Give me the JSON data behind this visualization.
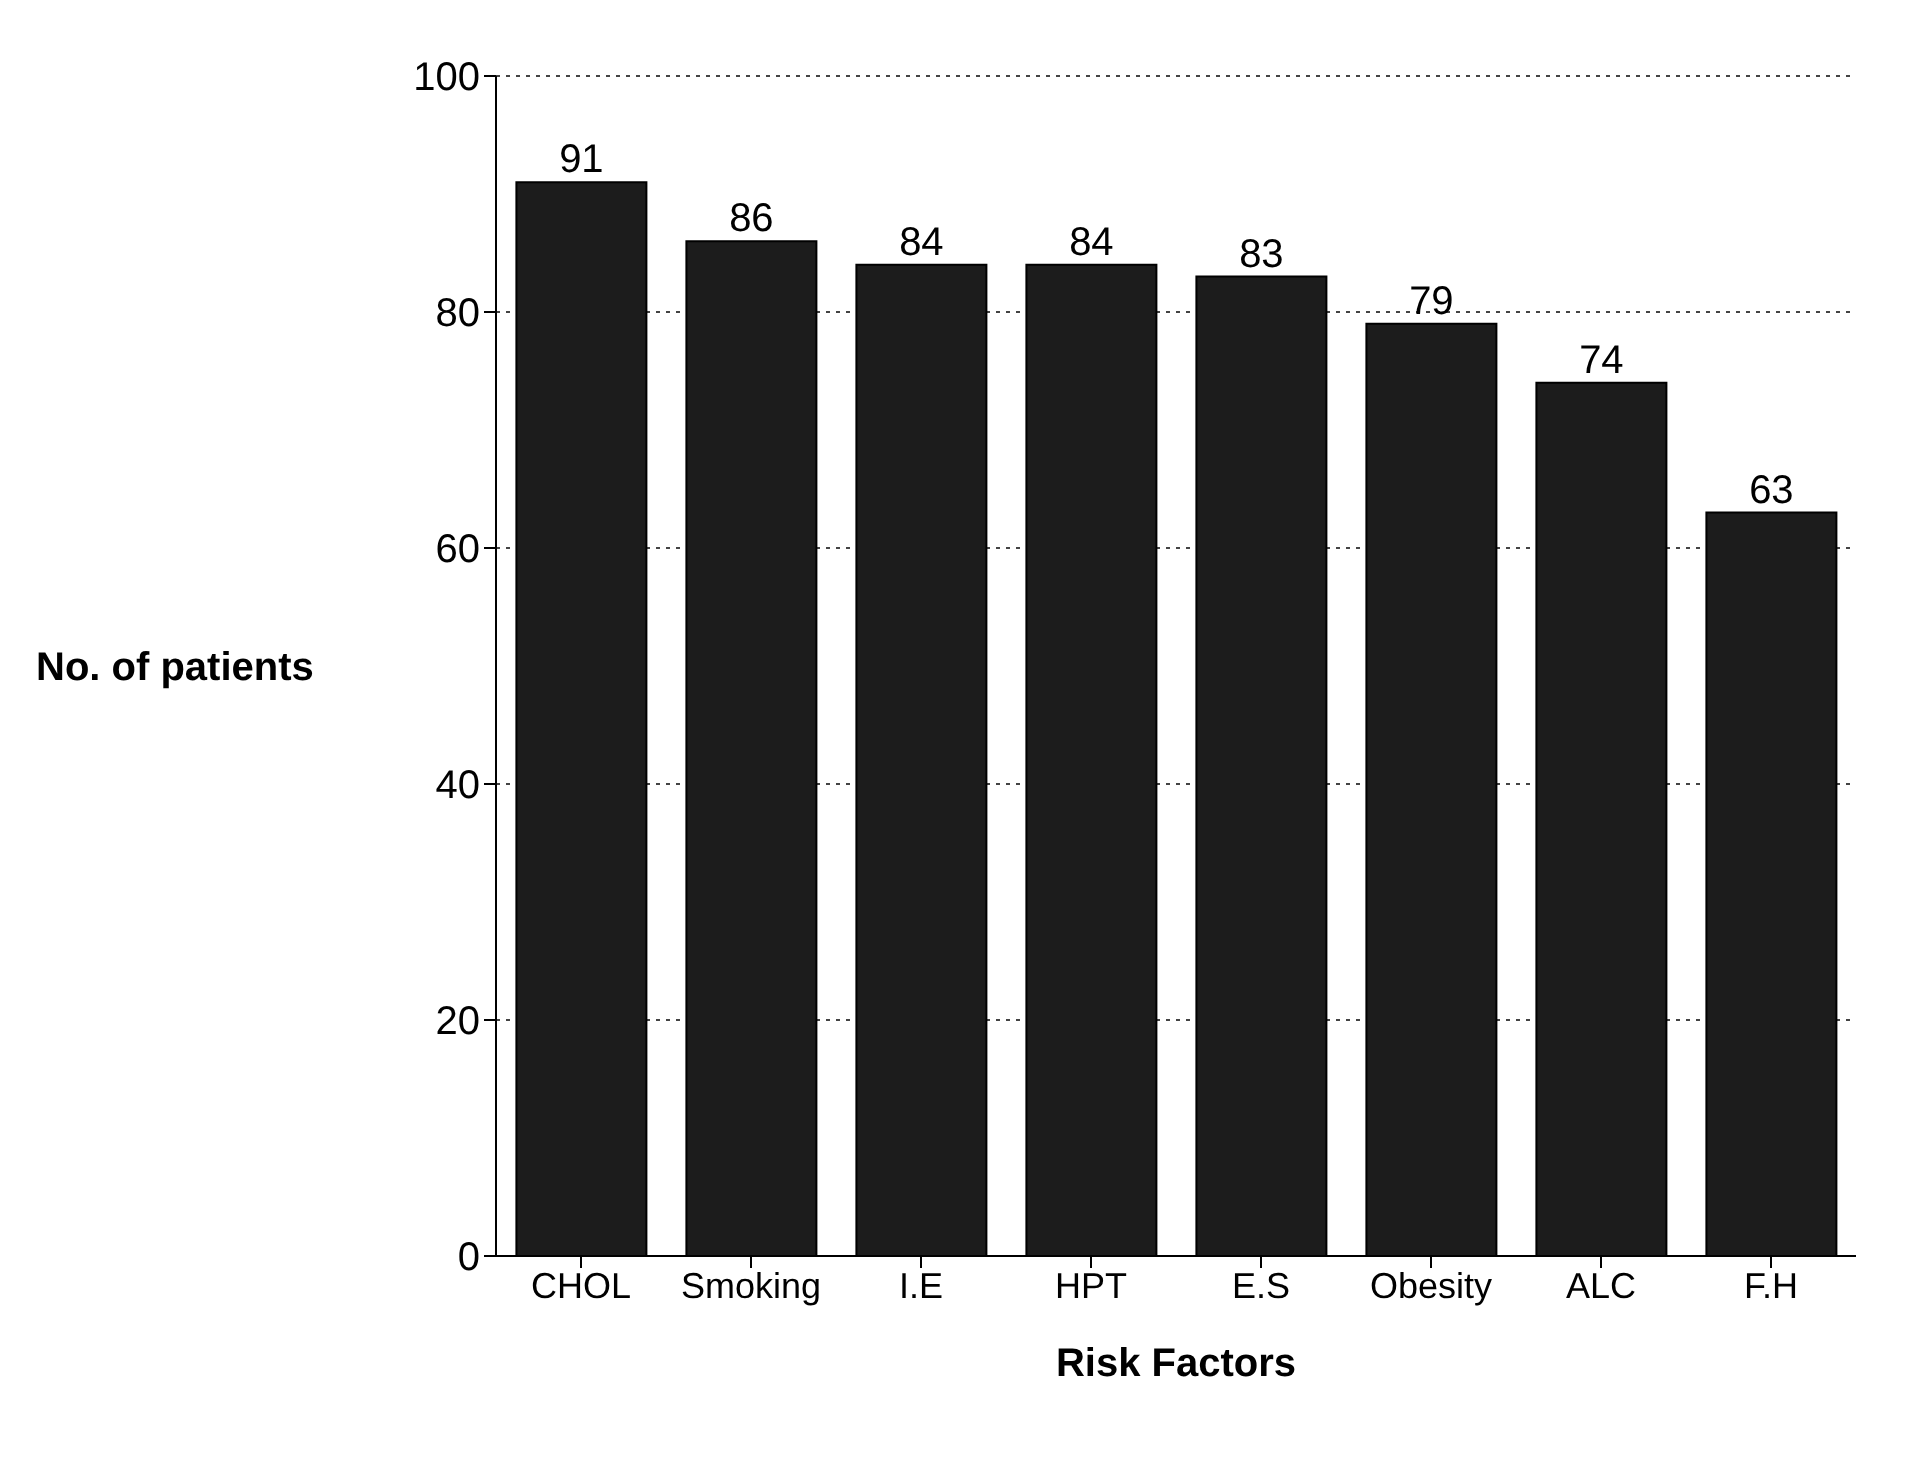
{
  "chart_data": {
    "type": "bar",
    "xlabel": "Risk Factors",
    "ylabel": "No. of patients",
    "categories": [
      "CHOL",
      "Smoking",
      "I.E",
      "HPT",
      "E.S",
      "Obesity",
      "ALC",
      "F.H"
    ],
    "values": [
      91,
      86,
      84,
      84,
      83,
      79,
      74,
      63
    ],
    "color": "#1c1c1c",
    "ylim": [
      0,
      100
    ],
    "yticks": [
      0,
      20,
      40,
      60,
      80,
      100
    ],
    "grid": "y",
    "data_labels": true
  }
}
